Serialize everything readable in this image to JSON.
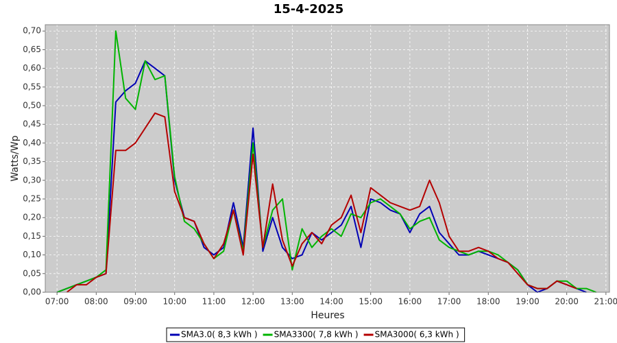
{
  "chart_data": {
    "type": "line",
    "title": "15-4-2025",
    "x_label": "Heures",
    "y_label": "Watts/Wp",
    "x": [
      7.0,
      7.25,
      7.5,
      7.75,
      8.0,
      8.25,
      8.5,
      8.75,
      9.0,
      9.25,
      9.5,
      9.75,
      10.0,
      10.25,
      10.5,
      10.75,
      11.0,
      11.25,
      11.5,
      11.75,
      12.0,
      12.25,
      12.5,
      12.75,
      13.0,
      13.25,
      13.5,
      13.75,
      14.0,
      14.25,
      14.5,
      14.75,
      15.0,
      15.25,
      15.5,
      15.75,
      16.0,
      16.25,
      16.5,
      16.75,
      17.0,
      17.25,
      17.5,
      17.75,
      18.0,
      18.25,
      18.5,
      18.75,
      19.0,
      19.25,
      19.5,
      19.75,
      20.0,
      20.25,
      20.5,
      20.75
    ],
    "series": [
      {
        "name": "SMA3.0( 8,3 kWh )",
        "color": "#0000b4",
        "values": [
          0.0,
          0.01,
          0.02,
          0.03,
          0.04,
          0.05,
          0.51,
          0.54,
          0.56,
          0.62,
          0.6,
          0.58,
          0.3,
          0.2,
          0.19,
          0.12,
          0.1,
          0.12,
          0.24,
          0.12,
          0.44,
          0.11,
          0.2,
          0.12,
          0.09,
          0.1,
          0.16,
          0.14,
          0.16,
          0.18,
          0.23,
          0.12,
          0.25,
          0.24,
          0.22,
          0.21,
          0.16,
          0.21,
          0.23,
          0.16,
          0.13,
          0.1,
          0.1,
          0.11,
          0.1,
          0.09,
          0.08,
          0.06,
          0.02,
          0.0,
          0.01,
          0.03,
          0.02,
          0.01,
          0.0,
          null
        ]
      },
      {
        "name": "SMA3300( 7,8 kWh )",
        "color": "#00b400",
        "values": [
          0.0,
          0.01,
          0.02,
          0.03,
          0.04,
          0.06,
          0.7,
          0.52,
          0.49,
          0.62,
          0.57,
          0.58,
          0.31,
          0.19,
          0.17,
          0.13,
          0.09,
          0.11,
          0.22,
          0.11,
          0.4,
          0.12,
          0.22,
          0.25,
          0.06,
          0.17,
          0.12,
          0.15,
          0.17,
          0.15,
          0.21,
          0.2,
          0.24,
          0.25,
          0.23,
          0.21,
          0.17,
          0.19,
          0.2,
          0.14,
          0.12,
          0.11,
          0.1,
          0.11,
          0.11,
          0.1,
          0.08,
          0.06,
          0.02,
          0.01,
          0.01,
          0.03,
          0.03,
          0.01,
          0.01,
          0.0
        ]
      },
      {
        "name": "SMA3000( 6,3 kWh )",
        "color": "#b40000",
        "values": [
          null,
          0.0,
          0.02,
          0.02,
          0.04,
          0.05,
          0.38,
          0.38,
          0.4,
          0.44,
          0.48,
          0.47,
          0.27,
          0.2,
          0.19,
          0.13,
          0.09,
          0.13,
          0.22,
          0.1,
          0.37,
          0.12,
          0.29,
          0.14,
          0.07,
          0.13,
          0.16,
          0.13,
          0.18,
          0.2,
          0.26,
          0.16,
          0.28,
          0.26,
          0.24,
          0.23,
          0.22,
          0.23,
          0.3,
          0.24,
          0.15,
          0.11,
          0.11,
          0.12,
          0.11,
          0.09,
          0.08,
          0.05,
          0.02,
          0.01,
          0.01,
          0.03,
          0.02,
          0.01,
          null,
          null
        ]
      }
    ],
    "xlim": [
      6.7,
      21.09
    ],
    "xticks": [
      {
        "value": 7,
        "label": "07:00"
      },
      {
        "value": 8,
        "label": "08:00"
      },
      {
        "value": 9,
        "label": "09:00"
      },
      {
        "value": 10,
        "label": "10:00"
      },
      {
        "value": 11,
        "label": "11:00"
      },
      {
        "value": 12,
        "label": "12:00"
      },
      {
        "value": 13,
        "label": "13:00"
      },
      {
        "value": 14,
        "label": "14:00"
      },
      {
        "value": 15,
        "label": "15:00"
      },
      {
        "value": 16,
        "label": "16:00"
      },
      {
        "value": 17,
        "label": "17:00"
      },
      {
        "value": 18,
        "label": "18:00"
      },
      {
        "value": 19,
        "label": "19:00"
      },
      {
        "value": 20,
        "label": "20:00"
      },
      {
        "value": 21,
        "label": "21:00"
      }
    ],
    "ylim": [
      0,
      0.717
    ],
    "yticks": [
      {
        "value": 0,
        "label": "0,00"
      },
      {
        "value": 0.05,
        "label": "0,05"
      },
      {
        "value": 0.1,
        "label": "0,10"
      },
      {
        "value": 0.15,
        "label": "0,15"
      },
      {
        "value": 0.2,
        "label": "0,20"
      },
      {
        "value": 0.25,
        "label": "0,25"
      },
      {
        "value": 0.3,
        "label": "0,30"
      },
      {
        "value": 0.35,
        "label": "0,35"
      },
      {
        "value": 0.4,
        "label": "0,40"
      },
      {
        "value": 0.45,
        "label": "0,45"
      },
      {
        "value": 0.5,
        "label": "0,50"
      },
      {
        "value": 0.55,
        "label": "0,55"
      },
      {
        "value": 0.6,
        "label": "0,60"
      },
      {
        "value": 0.65,
        "label": "0,65"
      },
      {
        "value": 0.7,
        "label": "0,70"
      }
    ],
    "grid": true,
    "legend": "bottom"
  }
}
